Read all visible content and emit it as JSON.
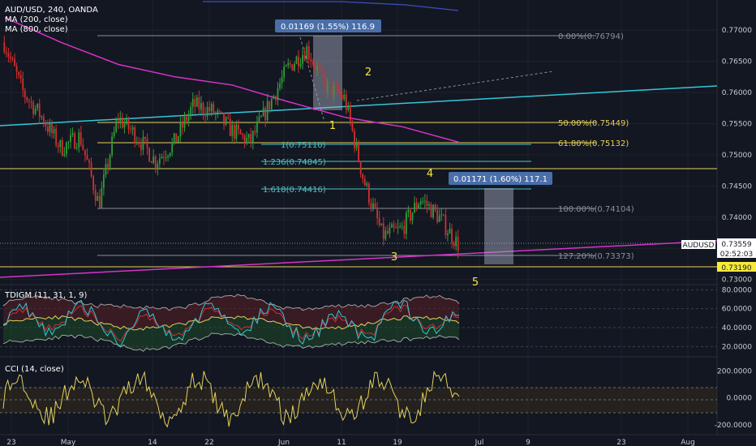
{
  "header": {
    "title": "AUD/USD, 240, OANDA",
    "ma200": "MA (200, close)",
    "ma800": "MA (800, close)"
  },
  "panes": {
    "tdi": "TDIGM (11, 31, 1, 9)",
    "cci": "CCI (14, close)"
  },
  "colors": {
    "bg": "#131722",
    "up": "#2e9e3a",
    "down": "#d32f2f",
    "ma200": "#d633c9",
    "trend": "#35c7d6",
    "fib": "#8a8f9a",
    "fib_gold": "#e4d15a",
    "fib_ext": "#4fc2c7",
    "wave": "#f6ea3c"
  },
  "chart_data": [
    {
      "type": "line",
      "title": "AUD/USD, 240, OANDA",
      "x_ticks": [
        "23",
        "May",
        "14",
        "22",
        "Jun",
        "11",
        "19",
        "Jul",
        "9",
        "23",
        "Aug"
      ],
      "y_ticks": [
        "0.77000",
        "0.76500",
        "0.76000",
        "0.75500",
        "0.75000",
        "0.74500",
        "0.74000",
        "0.73500",
        "0.73000"
      ],
      "ylim": [
        0.7293,
        0.7738
      ],
      "series": [
        {
          "name": "AUDUSD",
          "style": "candlestick",
          "x": [
            "Apr 23",
            "Apr 25",
            "Apr 27",
            "May 1",
            "May 3",
            "May 7",
            "May 9",
            "May 11",
            "May 15",
            "May 17",
            "May 21",
            "May 23",
            "May 25",
            "May 29",
            "May 31",
            "Jun 4",
            "Jun 6",
            "Jun 8",
            "Jun 12",
            "Jun 14",
            "Jun 18",
            "Jun 20",
            "Jun 22",
            "Jun 26",
            "Jun 28"
          ],
          "values": [
            0.768,
            0.76,
            0.756,
            0.751,
            0.753,
            0.742,
            0.756,
            0.753,
            0.749,
            0.752,
            0.758,
            0.757,
            0.754,
            0.752,
            0.758,
            0.764,
            0.767,
            0.761,
            0.759,
            0.746,
            0.737,
            0.738,
            0.743,
            0.74,
            0.7356
          ]
        },
        {
          "name": "MA (200, close)",
          "x": [
            "Apr 23",
            "May 1",
            "May 9",
            "May 17",
            "May 25",
            "Jun 2",
            "Jun 10",
            "Jun 18",
            "Jun 26"
          ],
          "values": [
            0.772,
            0.768,
            0.7645,
            0.7625,
            0.7612,
            0.7585,
            0.756,
            0.7545,
            0.752
          ]
        }
      ],
      "annotations": {
        "fib_levels": [
          "0.00%(0.76794)",
          "50.00%(0.75449)",
          "61.80%(0.75132)",
          "100.00%(0.74104)",
          "127.20%(0.73373)"
        ],
        "fib_extensions": [
          "1(0.75110)",
          "1.236(0.74845)",
          "1.618(0.74416)"
        ],
        "waves": [
          "1",
          "2",
          "3",
          "4",
          "5"
        ],
        "range_labels": [
          "0.01169 (1.55%) 116.9",
          "0.01171 (1.60%) 117.1"
        ],
        "price_tags": [
          "AUDUSD",
          "0.73559",
          "02:52:03",
          "0.73190"
        ]
      }
    },
    {
      "type": "line",
      "title": "TDIGM (11, 31, 1, 9)",
      "y_ticks": [
        "80.0000",
        "60.0000",
        "40.0000",
        "20.0000"
      ],
      "ylim": [
        10,
        82
      ]
    },
    {
      "type": "line",
      "title": "CCI (14, close)",
      "y_ticks": [
        "200.0000",
        "0.0000",
        "-200.0000"
      ],
      "ylim": [
        -260,
        280
      ]
    }
  ]
}
